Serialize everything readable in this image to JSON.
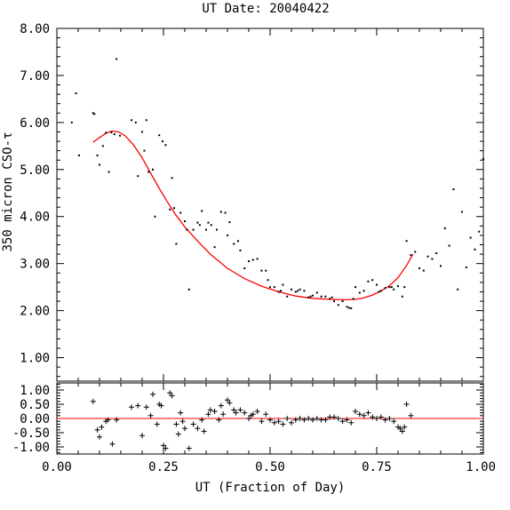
{
  "chart_data": [
    {
      "type": "scatter",
      "title": "UT Date: 20040422",
      "xlabel": "",
      "ylabel": "350 micron CSO-τ",
      "xlim": [
        0,
        1
      ],
      "ylim": [
        0.5,
        8.0
      ],
      "yticks": [
        "1.00",
        "2.00",
        "3.00",
        "4.00",
        "5.00",
        "6.00",
        "7.00",
        "8.00"
      ],
      "colors": {
        "points": "#000000",
        "fit": "#ff0000"
      },
      "series": [
        {
          "style": "dots",
          "x": [
            0.035,
            0.045,
            0.052,
            0.085,
            0.088,
            0.095,
            0.1,
            0.108,
            0.115,
            0.122,
            0.128,
            0.135,
            0.14,
            0.148,
            0.175,
            0.185,
            0.19,
            0.2,
            0.205,
            0.21,
            0.215,
            0.225,
            0.23,
            0.24,
            0.248,
            0.255,
            0.265,
            0.27,
            0.275,
            0.28,
            0.29,
            0.3,
            0.305,
            0.31,
            0.32,
            0.33,
            0.335,
            0.34,
            0.35,
            0.355,
            0.362,
            0.37,
            0.375,
            0.385,
            0.395,
            0.4,
            0.405,
            0.415,
            0.425,
            0.43,
            0.44,
            0.45,
            0.46,
            0.47,
            0.48,
            0.49,
            0.495,
            0.5,
            0.51,
            0.52,
            0.525,
            0.53,
            0.54,
            0.55,
            0.56,
            0.565,
            0.57,
            0.58,
            0.59,
            0.595,
            0.6,
            0.61,
            0.62,
            0.63,
            0.64,
            0.645,
            0.65,
            0.66,
            0.67,
            0.68,
            0.685,
            0.69,
            0.695,
            0.7,
            0.71,
            0.72,
            0.73,
            0.74,
            0.75,
            0.755,
            0.76,
            0.77,
            0.78,
            0.785,
            0.79,
            0.8,
            0.81,
            0.815,
            0.82,
            0.83,
            0.84,
            0.85,
            0.86,
            0.87,
            0.88,
            0.89,
            0.9,
            0.91,
            0.92,
            0.93,
            0.94,
            0.95,
            0.96,
            0.97,
            0.98,
            0.99,
            1.0
          ],
          "y": [
            6.0,
            6.62,
            5.3,
            6.2,
            6.18,
            5.3,
            5.1,
            5.5,
            5.78,
            4.95,
            5.79,
            5.75,
            7.35,
            5.72,
            6.05,
            6.0,
            4.86,
            5.8,
            5.4,
            6.05,
            4.95,
            5.0,
            4.0,
            5.73,
            5.6,
            5.52,
            4.15,
            4.82,
            4.18,
            3.42,
            4.08,
            3.9,
            3.72,
            2.45,
            3.72,
            3.87,
            3.82,
            4.12,
            3.72,
            3.87,
            3.82,
            3.35,
            3.72,
            4.1,
            4.08,
            3.6,
            3.88,
            3.42,
            3.48,
            3.28,
            2.9,
            3.05,
            3.08,
            3.1,
            2.85,
            2.85,
            2.65,
            2.5,
            2.5,
            2.4,
            2.42,
            2.55,
            2.3,
            2.45,
            2.4,
            2.42,
            2.45,
            2.42,
            2.28,
            2.3,
            2.32,
            2.38,
            2.3,
            2.3,
            2.25,
            2.28,
            2.2,
            2.12,
            2.2,
            2.08,
            2.06,
            2.05,
            2.25,
            2.5,
            2.38,
            2.42,
            2.62,
            2.65,
            2.55,
            2.4,
            2.42,
            2.48,
            2.5,
            2.5,
            2.45,
            2.52,
            2.3,
            2.5,
            3.48,
            3.18,
            3.25,
            2.9,
            2.85,
            3.15,
            3.1,
            3.22,
            2.95,
            3.75,
            3.38,
            4.58,
            2.45,
            4.1,
            2.92,
            3.55,
            3.3,
            3.68,
            5.22
          ]
        },
        {
          "style": "line",
          "x": [
            0.085,
            0.1,
            0.115,
            0.13,
            0.145,
            0.16,
            0.18,
            0.2,
            0.22,
            0.24,
            0.26,
            0.28,
            0.3,
            0.33,
            0.36,
            0.4,
            0.44,
            0.48,
            0.52,
            0.56,
            0.6,
            0.64,
            0.68,
            0.7,
            0.72,
            0.74,
            0.76,
            0.78,
            0.8,
            0.82,
            0.835
          ],
          "y": [
            5.58,
            5.68,
            5.77,
            5.82,
            5.8,
            5.72,
            5.52,
            5.25,
            4.92,
            4.6,
            4.3,
            4.02,
            3.78,
            3.48,
            3.2,
            2.9,
            2.68,
            2.52,
            2.4,
            2.31,
            2.26,
            2.24,
            2.23,
            2.24,
            2.27,
            2.33,
            2.42,
            2.53,
            2.7,
            2.96,
            3.2
          ]
        }
      ]
    },
    {
      "type": "scatter",
      "xlabel": "UT (Fraction of Day)",
      "ylabel": "",
      "xlim": [
        0,
        1
      ],
      "ylim": [
        -1.25,
        1.25
      ],
      "xticks": [
        "0.00",
        "0.25",
        "0.50",
        "0.75",
        "1.00"
      ],
      "yticks": [
        "-1.00",
        "-0.50",
        "0.00",
        "0.50",
        "1.00"
      ],
      "colors": {
        "points": "#000000",
        "zero": "#ff0000"
      },
      "series": [
        {
          "style": "plus",
          "x": [
            0.085,
            0.095,
            0.1,
            0.105,
            0.115,
            0.12,
            0.13,
            0.14,
            0.175,
            0.19,
            0.2,
            0.21,
            0.22,
            0.225,
            0.235,
            0.24,
            0.245,
            0.25,
            0.255,
            0.265,
            0.27,
            0.28,
            0.285,
            0.29,
            0.295,
            0.3,
            0.31,
            0.32,
            0.33,
            0.34,
            0.345,
            0.355,
            0.36,
            0.37,
            0.38,
            0.385,
            0.39,
            0.4,
            0.405,
            0.415,
            0.42,
            0.43,
            0.44,
            0.45,
            0.455,
            0.46,
            0.47,
            0.48,
            0.49,
            0.5,
            0.51,
            0.52,
            0.53,
            0.54,
            0.55,
            0.56,
            0.57,
            0.58,
            0.59,
            0.6,
            0.61,
            0.62,
            0.63,
            0.64,
            0.65,
            0.66,
            0.67,
            0.68,
            0.69,
            0.7,
            0.71,
            0.72,
            0.73,
            0.74,
            0.75,
            0.76,
            0.77,
            0.78,
            0.79,
            0.8,
            0.805,
            0.81,
            0.815,
            0.82,
            0.83
          ],
          "y": [
            0.6,
            -0.4,
            -0.65,
            -0.3,
            -0.1,
            -0.05,
            -0.9,
            -0.05,
            0.4,
            0.45,
            -0.6,
            0.4,
            0.1,
            0.85,
            -0.2,
            0.5,
            0.45,
            -0.95,
            -1.05,
            0.9,
            0.8,
            -0.2,
            -0.55,
            0.2,
            -0.1,
            -0.35,
            -1.05,
            -0.2,
            -0.35,
            -0.05,
            -0.45,
            0.15,
            0.3,
            0.25,
            -0.05,
            0.45,
            0.15,
            0.65,
            0.55,
            0.3,
            0.2,
            0.3,
            0.2,
            0.0,
            0.1,
            0.15,
            0.25,
            -0.1,
            0.15,
            -0.05,
            -0.15,
            -0.1,
            -0.2,
            0.0,
            -0.15,
            -0.05,
            0.0,
            -0.05,
            0.0,
            -0.05,
            0.0,
            -0.05,
            -0.05,
            0.05,
            0.05,
            0.0,
            -0.1,
            -0.05,
            -0.15,
            0.25,
            0.15,
            0.1,
            0.2,
            0.05,
            0.0,
            0.05,
            -0.05,
            0.0,
            -0.1,
            -0.3,
            -0.35,
            -0.45,
            -0.3,
            0.5,
            0.1
          ]
        }
      ]
    }
  ]
}
